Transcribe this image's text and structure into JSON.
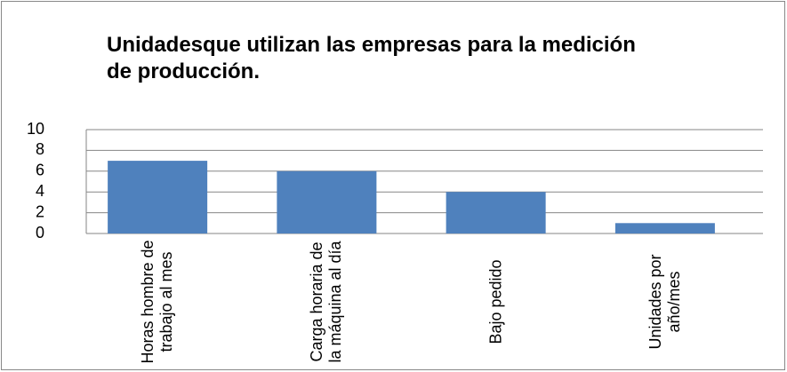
{
  "chart_data": {
    "type": "bar",
    "title": "Unidadesque utilizan las empresas para la medición de producción.",
    "categories": [
      "Horas hombre de trabajo al mes",
      "Carga horaria de la máquina al día",
      "Bajo pedido",
      "Unidades por año/mes"
    ],
    "values": [
      7,
      6,
      4,
      1
    ],
    "color": "#4f81bd",
    "ylim": [
      0,
      10
    ],
    "yticks": [
      0,
      2,
      4,
      6,
      8,
      10
    ],
    "grid": true
  }
}
